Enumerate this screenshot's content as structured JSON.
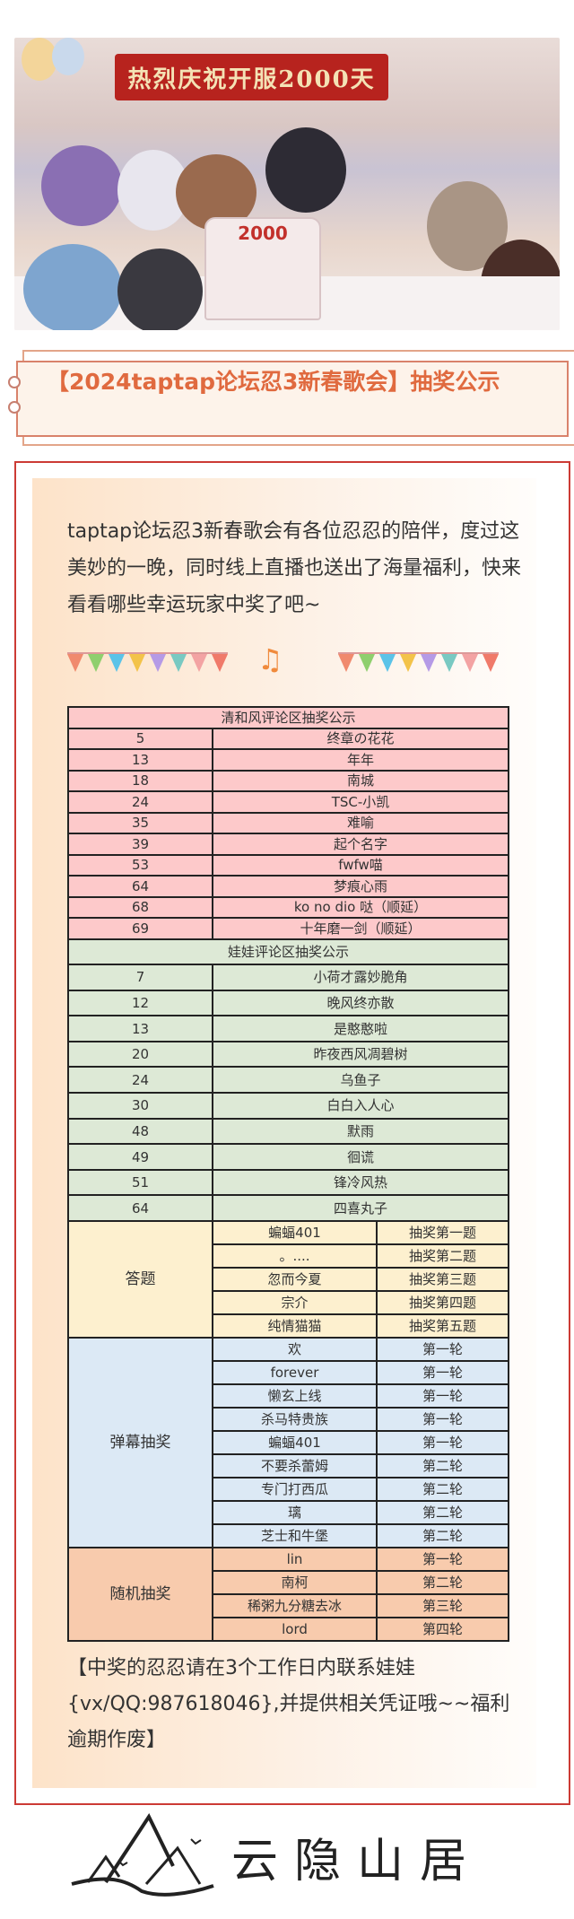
{
  "hero": {
    "banner_text": "热烈庆祝开服2000天",
    "cake_text": "2000"
  },
  "title": "【2024taptap论坛忍3新春歌会】抽奖公示",
  "intro": "taptap论坛忍3新春歌会有各位忍忍的陪伴，度过这美妙的一晚，同时线上直播也送出了海量福利，快来看看哪些幸运玩家中奖了吧~",
  "colors": {
    "accent": "#e06a3f",
    "frame": "#cc3b35",
    "pink": "#fdc9ca",
    "green": "#dde9d6",
    "yellow": "#fdf0cf",
    "blue": "#dce9f5",
    "orange": "#f8cbad"
  },
  "decoration": {
    "icons": [
      "bunting-flags-icon",
      "music-notes-icon",
      "bunting-flags-icon"
    ]
  },
  "qinghe": {
    "header": "清和风评论区抽奖公示",
    "rows": [
      {
        "no": "5",
        "name": "终章の花花"
      },
      {
        "no": "13",
        "name": "年年"
      },
      {
        "no": "18",
        "name": "南城"
      },
      {
        "no": "24",
        "name": "TSC-小凯"
      },
      {
        "no": "35",
        "name": "难喻"
      },
      {
        "no": "39",
        "name": "起个名字"
      },
      {
        "no": "53",
        "name": "fwfw喵"
      },
      {
        "no": "64",
        "name": "梦痕心雨"
      },
      {
        "no": "68",
        "name": "ko no dio 哒（顺延）"
      },
      {
        "no": "69",
        "name": "十年磨一剑（顺延）"
      }
    ]
  },
  "wawa": {
    "header": "娃娃评论区抽奖公示",
    "rows": [
      {
        "no": "7",
        "name": "小荷才露妙脆角"
      },
      {
        "no": "12",
        "name": "晚风终亦散"
      },
      {
        "no": "13",
        "name": "是憨憨啦"
      },
      {
        "no": "20",
        "name": "昨夜西风凋碧树"
      },
      {
        "no": "24",
        "name": "乌鱼子"
      },
      {
        "no": "30",
        "name": "白白入人心"
      },
      {
        "no": "48",
        "name": "默雨"
      },
      {
        "no": "49",
        "name": "徊谎"
      },
      {
        "no": "51",
        "name": "锋冷风热"
      },
      {
        "no": "64",
        "name": "四喜丸子"
      }
    ]
  },
  "quiz": {
    "label": "答题",
    "rows": [
      {
        "name": "蝙蝠401",
        "round": "抽奖第一题"
      },
      {
        "name": "。....",
        "round": "抽奖第二题"
      },
      {
        "name": "忽而今夏",
        "round": "抽奖第三题"
      },
      {
        "name": "宗介",
        "round": "抽奖第四题"
      },
      {
        "name": "纯情猫猫",
        "round": "抽奖第五题"
      }
    ]
  },
  "danmu": {
    "label": "弹幕抽奖",
    "rows": [
      {
        "name": "欢",
        "round": "第一轮"
      },
      {
        "name": "forever",
        "round": "第一轮"
      },
      {
        "name": "懒玄上线",
        "round": "第一轮"
      },
      {
        "name": "杀马特贵族",
        "round": "第一轮"
      },
      {
        "name": "蝙蝠401",
        "round": "第一轮"
      },
      {
        "name": "不要杀蕾姆",
        "round": "第二轮"
      },
      {
        "name": "专门打西瓜",
        "round": "第二轮"
      },
      {
        "name": "璃",
        "round": "第二轮"
      },
      {
        "name": "芝士和牛堡",
        "round": "第二轮"
      }
    ]
  },
  "random": {
    "label": "随机抽奖",
    "rows": [
      {
        "name": "lin",
        "round": "第一轮"
      },
      {
        "name": "南柯",
        "round": "第二轮"
      },
      {
        "name": "稀粥九分糖去冰",
        "round": "第三轮"
      },
      {
        "name": "lord",
        "round": "第四轮"
      }
    ]
  },
  "footer": "【中奖的忍忍请在3个工作日内联系娃娃{vx/QQ:987618046},并提供相关凭证哦~~福利逾期作废】",
  "logo": {
    "text": "云隐山居"
  }
}
